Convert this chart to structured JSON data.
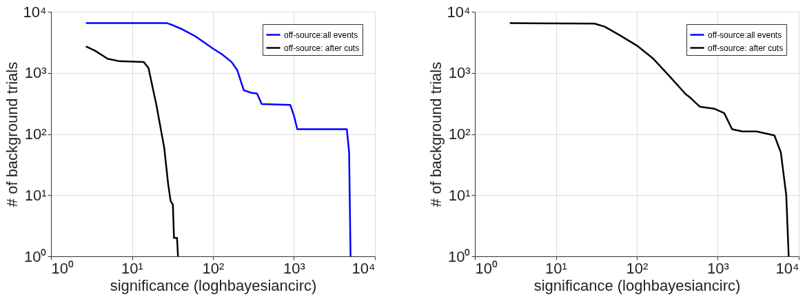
{
  "chart_data": [
    {
      "type": "line",
      "xlabel": "significance (loghbayesiancirc)",
      "ylabel": "# of background trials",
      "log": "xy",
      "grid": true,
      "legend": "top right",
      "line_style": "solid",
      "marker": "none",
      "xlim": [
        1,
        10000
      ],
      "ylim": [
        1,
        10000
      ],
      "xticks": [
        {
          "value": 1,
          "label": "10⁰"
        },
        {
          "value": 10,
          "label": "10¹"
        },
        {
          "value": 100,
          "label": "10²"
        },
        {
          "value": 1000,
          "label": "10³"
        },
        {
          "value": 10000,
          "label": "10⁴"
        }
      ],
      "yticks": [
        {
          "value": 1,
          "label": "10⁰"
        },
        {
          "value": 10,
          "label": "10¹"
        },
        {
          "value": 100,
          "label": "10²"
        },
        {
          "value": 1000,
          "label": "10³"
        },
        {
          "value": 10000,
          "label": "10⁴"
        }
      ],
      "series": [
        {
          "name": "off-source:all events",
          "color": "#0000ff",
          "x": [
            2.7,
            10,
            27,
            30,
            40,
            60,
            100,
            130,
            170,
            200,
            240,
            300,
            350,
            400,
            900,
            1000,
            1100,
            4500,
            4800,
            5000
          ],
          "values": [
            6500,
            6500,
            6500,
            6200,
            5300,
            4000,
            2500,
            2000,
            1500,
            1100,
            520,
            470,
            460,
            310,
            300,
            200,
            120,
            120,
            50,
            1
          ]
        },
        {
          "name": "off-source: after cuts",
          "color": "#000000",
          "x": [
            2.7,
            3.5,
            5,
            7,
            14,
            16,
            20,
            25,
            28,
            30,
            32,
            33,
            36,
            37
          ],
          "values": [
            2700,
            2300,
            1700,
            1550,
            1500,
            1200,
            300,
            60,
            15,
            8,
            7,
            2,
            2,
            1
          ]
        }
      ]
    },
    {
      "type": "line",
      "xlabel": "significance (loghbayesiancirc)",
      "ylabel": "# of background trials",
      "log": "xy",
      "grid": true,
      "legend": "top right",
      "line_style": "solid",
      "marker": "none",
      "xlim": [
        1,
        10000
      ],
      "ylim": [
        1,
        10000
      ],
      "xticks": [
        {
          "value": 1,
          "label": "10⁰"
        },
        {
          "value": 10,
          "label": "10¹"
        },
        {
          "value": 100,
          "label": "10²"
        },
        {
          "value": 1000,
          "label": "10³"
        },
        {
          "value": 10000,
          "label": "10⁴"
        }
      ],
      "yticks": [
        {
          "value": 1,
          "label": "10⁰"
        },
        {
          "value": 10,
          "label": "10¹"
        },
        {
          "value": 100,
          "label": "10²"
        },
        {
          "value": 1000,
          "label": "10³"
        },
        {
          "value": 10000,
          "label": "10⁴"
        }
      ],
      "series": [
        {
          "name": "off-source:all events",
          "color": "#0000ff"
        },
        {
          "name": "off-source: after cuts",
          "color": "#000000",
          "x": [
            2.7,
            30,
            40,
            60,
            100,
            160,
            250,
            400,
            450,
            600,
            900,
            1200,
            1500,
            2000,
            3000,
            5000,
            6000,
            7000,
            7500
          ],
          "values": [
            6500,
            6400,
            5700,
            4200,
            2800,
            1700,
            900,
            450,
            400,
            280,
            260,
            220,
            120,
            110,
            110,
            95,
            50,
            10,
            1
          ]
        }
      ]
    }
  ]
}
